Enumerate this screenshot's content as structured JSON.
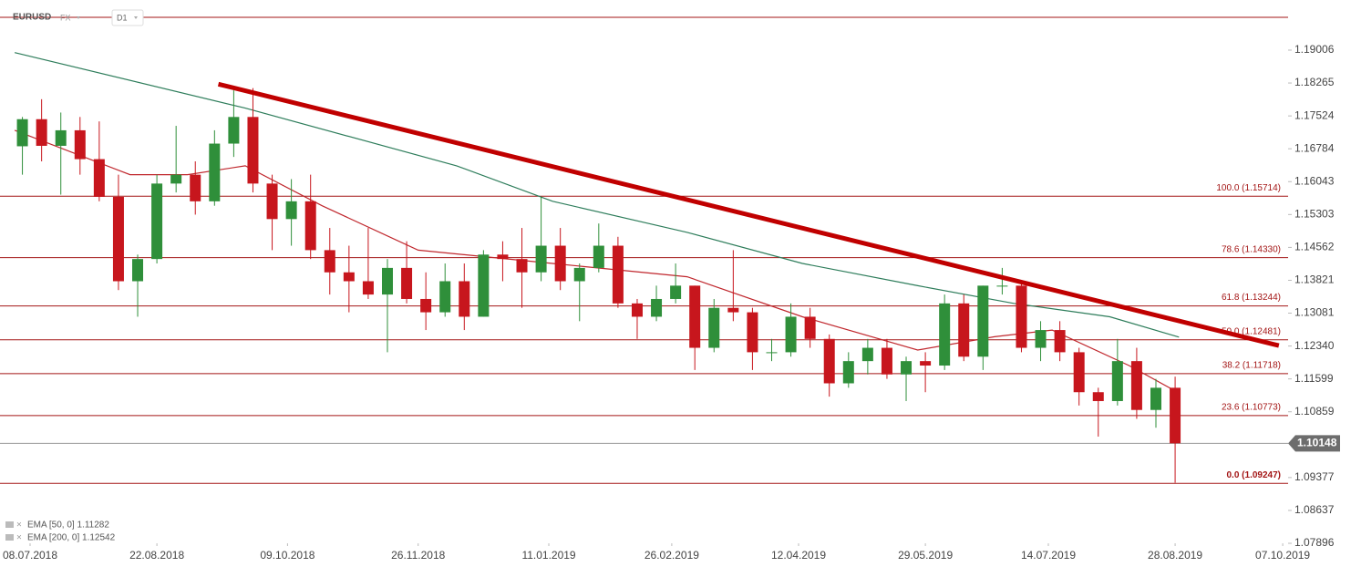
{
  "header": {
    "symbol": "EURUSD",
    "market": "FX",
    "interval": "D1"
  },
  "chart_data": {
    "type": "candlestick",
    "x": [
      "02.07.2018",
      "09.07.2018",
      "16.07.2018",
      "23.07.2018",
      "30.07.2018",
      "06.08.2018",
      "13.08.2018",
      "20.08.2018",
      "27.08.2018",
      "03.09.2018",
      "10.09.2018",
      "17.09.2018",
      "24.09.2018",
      "01.10.2018",
      "08.10.2018",
      "15.10.2018",
      "22.10.2018",
      "29.10.2018",
      "05.11.2018",
      "12.11.2018",
      "19.11.2018",
      "26.11.2018",
      "03.12.2018",
      "10.12.2018",
      "17.12.2018",
      "24.12.2018",
      "31.12.2018",
      "07.01.2019",
      "14.01.2019",
      "21.01.2019",
      "28.01.2019",
      "04.02.2019",
      "11.02.2019",
      "18.02.2019",
      "25.02.2019",
      "04.03.2019",
      "11.03.2019",
      "18.03.2019",
      "25.03.2019",
      "01.04.2019",
      "08.04.2019",
      "15.04.2019",
      "22.04.2019",
      "29.04.2019",
      "06.05.2019",
      "13.05.2019",
      "20.05.2019",
      "27.05.2019",
      "03.06.2019",
      "10.06.2019",
      "17.06.2019",
      "24.06.2019",
      "01.07.2019",
      "08.07.2019",
      "15.07.2019",
      "22.07.2019",
      "29.07.2019",
      "05.08.2019",
      "12.08.2019",
      "19.08.2019",
      "26.08.2019"
    ],
    "open": [
      1.1684,
      1.1745,
      1.1685,
      1.172,
      1.1655,
      1.157,
      1.138,
      1.143,
      1.16,
      1.162,
      1.156,
      1.169,
      1.175,
      1.16,
      1.152,
      1.156,
      1.145,
      1.14,
      1.138,
      1.135,
      1.141,
      1.134,
      1.131,
      1.138,
      1.13,
      1.144,
      1.143,
      1.14,
      1.146,
      1.138,
      1.141,
      1.146,
      1.133,
      1.13,
      1.134,
      1.137,
      1.123,
      1.132,
      1.131,
      1.122,
      1.122,
      1.13,
      1.125,
      1.115,
      1.12,
      1.123,
      1.117,
      1.12,
      1.119,
      1.133,
      1.121,
      1.137,
      1.137,
      1.123,
      1.127,
      1.122,
      1.113,
      1.111,
      1.12,
      1.109,
      1.114
    ],
    "high": [
      1.175,
      1.179,
      1.176,
      1.175,
      1.174,
      1.162,
      1.144,
      1.162,
      1.173,
      1.165,
      1.172,
      1.181,
      1.1815,
      1.162,
      1.161,
      1.162,
      1.15,
      1.146,
      1.15,
      1.143,
      1.147,
      1.14,
      1.142,
      1.142,
      1.145,
      1.147,
      1.15,
      1.157,
      1.15,
      1.142,
      1.151,
      1.148,
      1.134,
      1.137,
      1.142,
      1.137,
      1.134,
      1.145,
      1.132,
      1.125,
      1.133,
      1.132,
      1.126,
      1.122,
      1.125,
      1.125,
      1.121,
      1.122,
      1.135,
      1.135,
      1.137,
      1.141,
      1.138,
      1.129,
      1.129,
      1.123,
      1.114,
      1.125,
      1.123,
      1.116,
      1.1165
    ],
    "low": [
      1.162,
      1.165,
      1.1575,
      1.162,
      1.156,
      1.136,
      1.13,
      1.142,
      1.158,
      1.153,
      1.155,
      1.166,
      1.158,
      1.145,
      1.146,
      1.143,
      1.135,
      1.131,
      1.134,
      1.122,
      1.133,
      1.127,
      1.13,
      1.127,
      1.13,
      1.138,
      1.132,
      1.138,
      1.136,
      1.129,
      1.14,
      1.132,
      1.125,
      1.129,
      1.133,
      1.118,
      1.122,
      1.129,
      1.118,
      1.12,
      1.121,
      1.123,
      1.112,
      1.114,
      1.117,
      1.116,
      1.111,
      1.113,
      1.118,
      1.12,
      1.118,
      1.135,
      1.122,
      1.12,
      1.12,
      1.11,
      1.103,
      1.11,
      1.107,
      1.105,
      1.0926
    ],
    "close": [
      1.1745,
      1.1685,
      1.172,
      1.1655,
      1.157,
      1.138,
      1.143,
      1.16,
      1.162,
      1.156,
      1.169,
      1.175,
      1.16,
      1.152,
      1.156,
      1.145,
      1.14,
      1.138,
      1.135,
      1.141,
      1.134,
      1.131,
      1.138,
      1.13,
      1.144,
      1.143,
      1.14,
      1.146,
      1.138,
      1.141,
      1.146,
      1.133,
      1.13,
      1.134,
      1.137,
      1.123,
      1.132,
      1.131,
      1.122,
      1.122,
      1.13,
      1.125,
      1.115,
      1.12,
      1.123,
      1.117,
      1.12,
      1.119,
      1.133,
      1.121,
      1.137,
      1.137,
      1.123,
      1.127,
      1.122,
      1.113,
      1.111,
      1.12,
      1.109,
      1.114,
      1.10148
    ],
    "up_color": "#2f8f3a",
    "down_color": "#c7161d",
    "ylim": [
      1.07896,
      1.20135
    ],
    "yticks": [
      1.19006,
      1.18265,
      1.17524,
      1.16784,
      1.16043,
      1.15303,
      1.14562,
      1.13821,
      1.13081,
      {
        "value": 1.1234,
        "label": "1.12340"
      },
      1.11599,
      1.10859,
      1.09377,
      1.08637,
      1.07896
    ],
    "xticks": [
      "08.07.2018",
      "22.08.2018",
      "09.10.2018",
      "26.11.2018",
      "11.01.2019",
      "26.02.2019",
      "12.04.2019",
      "29.05.2019",
      "14.07.2019",
      "28.08.2019",
      "07.10.2019"
    ],
    "series": [
      {
        "name": "EMA [50, 0] 1.11282",
        "color": "#c0272d",
        "x": [
          "02.07.2018",
          "13.08.2018",
          "03.09.2018",
          "24.09.2018",
          "22.10.2018",
          "26.11.2018",
          "14.01.2019",
          "04.03.2019",
          "15.04.2019",
          "27.05.2019",
          "24.06.2019",
          "15.07.2019",
          "12.08.2019",
          "29.08.2019"
        ],
        "values": [
          1.172,
          1.162,
          1.162,
          1.164,
          1.155,
          1.145,
          1.142,
          1.139,
          1.13,
          1.1225,
          1.1255,
          1.127,
          1.119,
          1.11282
        ]
      },
      {
        "name": "EMA [200, 0] 1.12542",
        "color": "#2e7d5b",
        "x": [
          "02.07.2018",
          "24.09.2018",
          "10.12.2018",
          "14.01.2019",
          "04.03.2019",
          "15.04.2019",
          "27.05.2019",
          "01.07.2019",
          "05.08.2019",
          "29.08.2019"
        ],
        "values": [
          1.1895,
          1.177,
          1.164,
          1.156,
          1.149,
          1.142,
          1.137,
          1.133,
          1.13,
          1.12542
        ]
      }
    ],
    "levels": [
      {
        "value": 1.15714,
        "label": "100.0 (1.15714)"
      },
      {
        "value": 1.1433,
        "label": "78.6 (1.14330)"
      },
      {
        "value": 1.13244,
        "label": "61.8 (1.13244)"
      },
      {
        "value": 1.12481,
        "label": "50.0 (1.12481)"
      },
      {
        "value": 1.11718,
        "label": "38.2 (1.11718)"
      },
      {
        "value": 1.10773,
        "label": "23.6 (1.10773)"
      },
      {
        "value": 1.09247,
        "label": "0.0 (1.09247)"
      }
    ],
    "level_color": "#a31515",
    "trendline": {
      "color": "#c00000",
      "x": [
        "13.09.2018",
        "04.10.2019"
      ],
      "values": [
        1.1824,
        1.1235
      ]
    },
    "last_price": 1.10148
  }
}
